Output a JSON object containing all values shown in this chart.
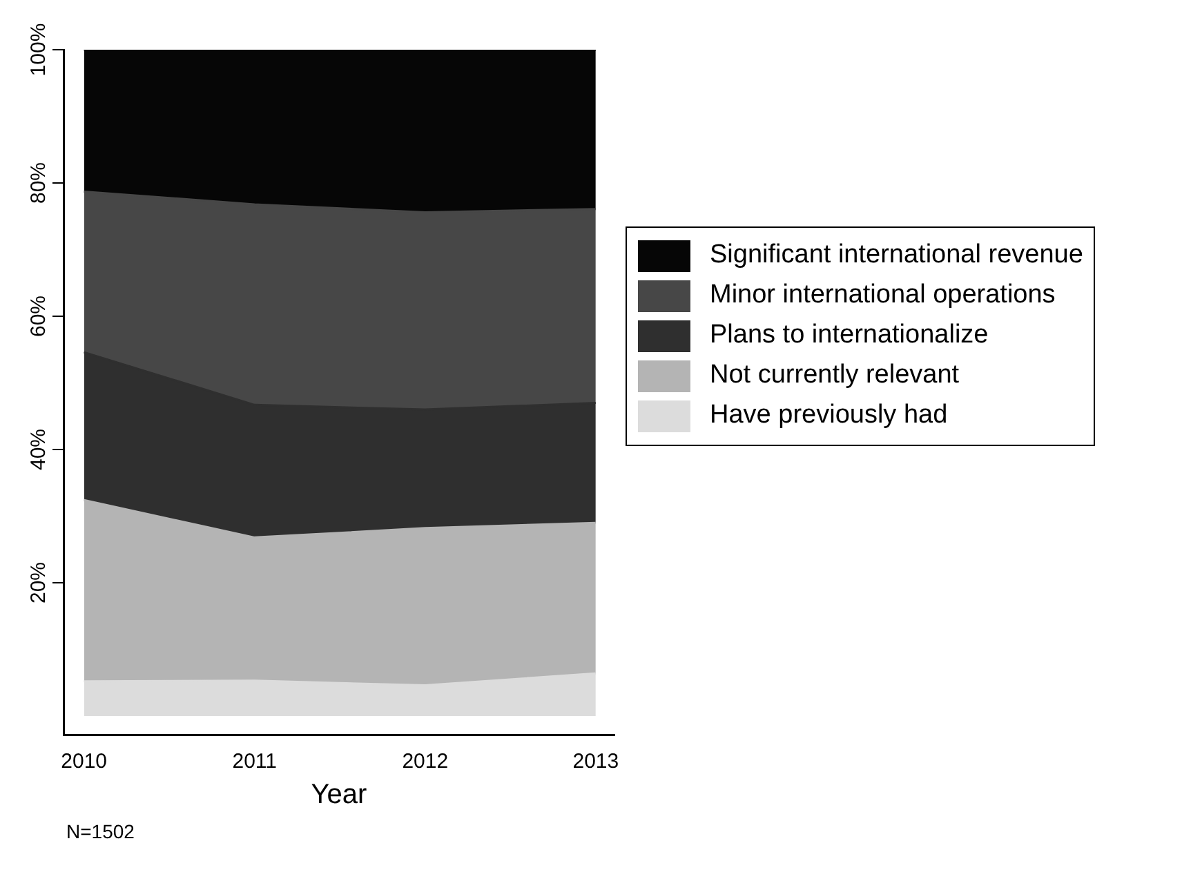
{
  "chart_data": {
    "type": "area",
    "stacked": true,
    "xlabel": "Year",
    "x": [
      2010,
      2011,
      2012,
      2013
    ],
    "xlim": [
      2009.88,
      2013.11
    ],
    "xticks": [
      2010,
      2011,
      2012,
      2013
    ],
    "ylim": [
      -2.8,
      100
    ],
    "yticks": [
      {
        "value": 20,
        "label": "20%"
      },
      {
        "value": 40,
        "label": "40%"
      },
      {
        "value": 60,
        "label": "60%"
      },
      {
        "value": 80,
        "label": "80%"
      },
      {
        "value": 100,
        "label": "100%"
      }
    ],
    "grid": false,
    "legend": "right",
    "annotations": [
      "N=1502"
    ],
    "series": [
      {
        "name": "Have previously had",
        "color": "#dcdcdc",
        "values": [
          5.2,
          5.3,
          4.6,
          6.4
        ]
      },
      {
        "name": "Not currently relevant",
        "color": "#b4b4b4",
        "values": [
          27.2,
          21.5,
          23.6,
          22.6
        ]
      },
      {
        "name": "Plans to internationalize",
        "color": "#2f2f2f",
        "values": [
          22.2,
          19.9,
          17.8,
          18.0
        ]
      },
      {
        "name": "Minor international operations",
        "color": "#474747",
        "values": [
          24.1,
          30.1,
          29.6,
          29.1
        ]
      },
      {
        "name": "Significant international revenue",
        "color": "#060606",
        "values": [
          21.3,
          23.2,
          24.4,
          23.9
        ]
      }
    ]
  }
}
